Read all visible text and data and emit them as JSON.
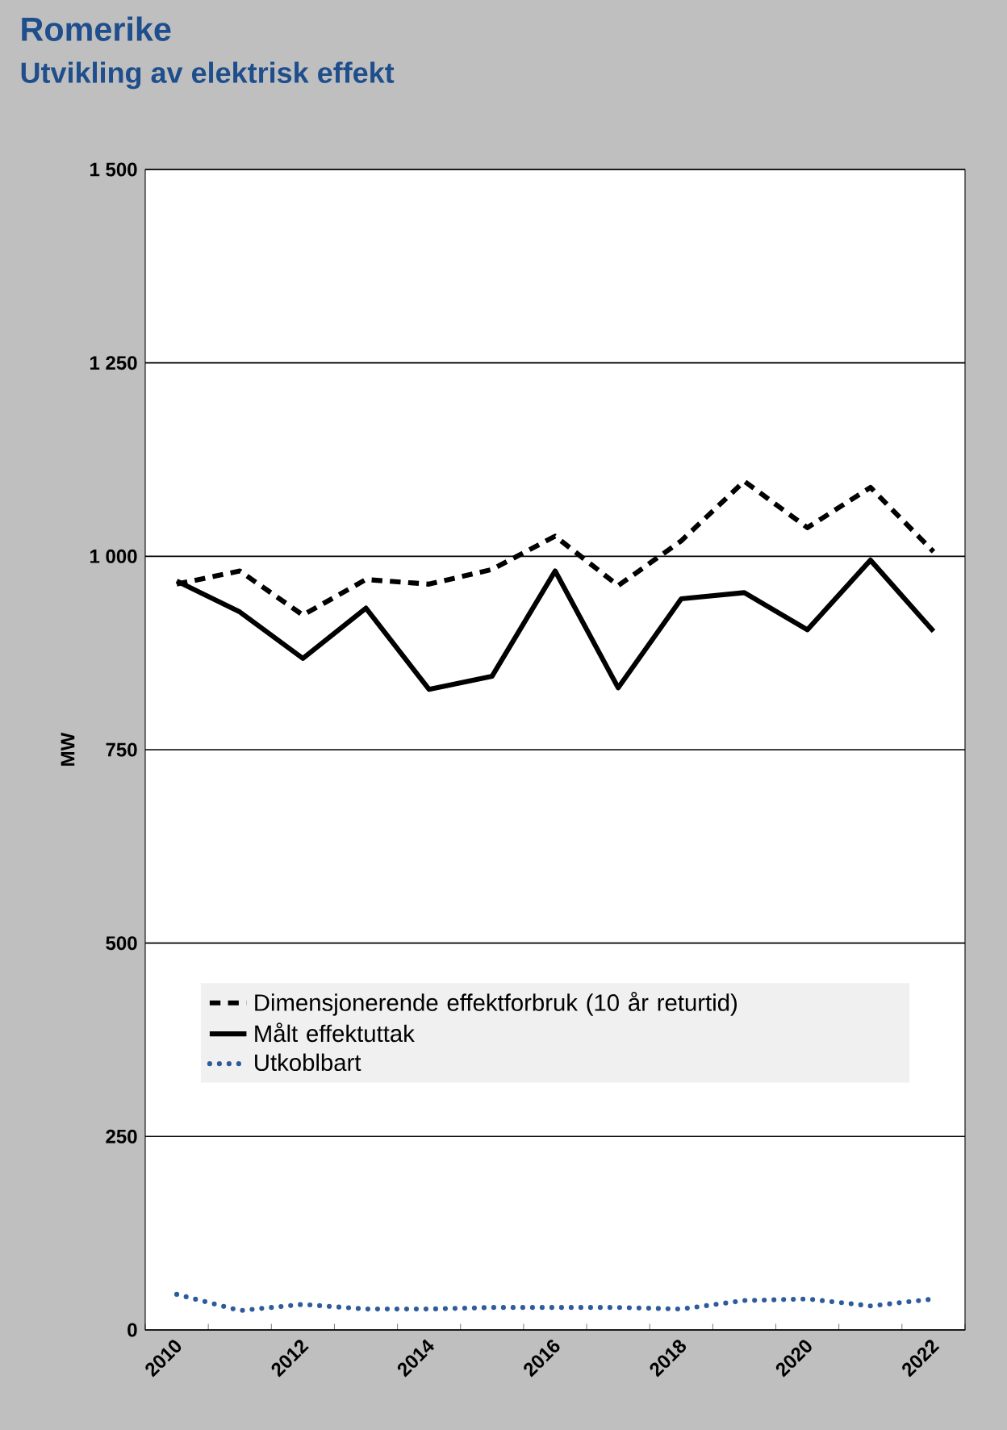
{
  "chart_data": {
    "type": "line",
    "title": "Romerike",
    "subtitle": "Utvikling av elektrisk effekt",
    "ylabel": "MW",
    "categories": [
      "2010",
      null,
      "2012",
      null,
      "2014",
      null,
      "2016",
      null,
      "2018",
      null,
      "2020",
      null,
      "2022"
    ],
    "series": [
      {
        "name": "Dimensjonerende effektforbruk (10 år returtid)",
        "color": "#000000",
        "line_style": "dashed",
        "values": [
          964,
          981,
          924,
          970,
          964,
          983,
          1026,
          962,
          1020,
          1097,
          1037,
          1089,
          1006
        ]
      },
      {
        "name": "Målt effektuttak",
        "color": "#000000",
        "line_style": "solid",
        "values": [
          968,
          928,
          868,
          933,
          828,
          845,
          981,
          830,
          945,
          953,
          905,
          995,
          903
        ]
      },
      {
        "name": "Utkoblbart",
        "color": "#2e5c9a",
        "line_style": "dotted",
        "values": [
          46,
          25,
          33,
          27,
          27,
          29,
          29,
          29,
          27,
          38,
          40,
          31,
          40
        ]
      }
    ],
    "ylim": [
      0,
      1500
    ],
    "yticks": [
      0,
      250,
      500,
      750,
      {
        "value": 1000,
        "label": "1 000"
      },
      {
        "value": 1250,
        "label": "1 250"
      },
      {
        "value": 1500,
        "label": "1 500"
      }
    ],
    "grid": "y",
    "legend": "center",
    "marker": "none"
  }
}
